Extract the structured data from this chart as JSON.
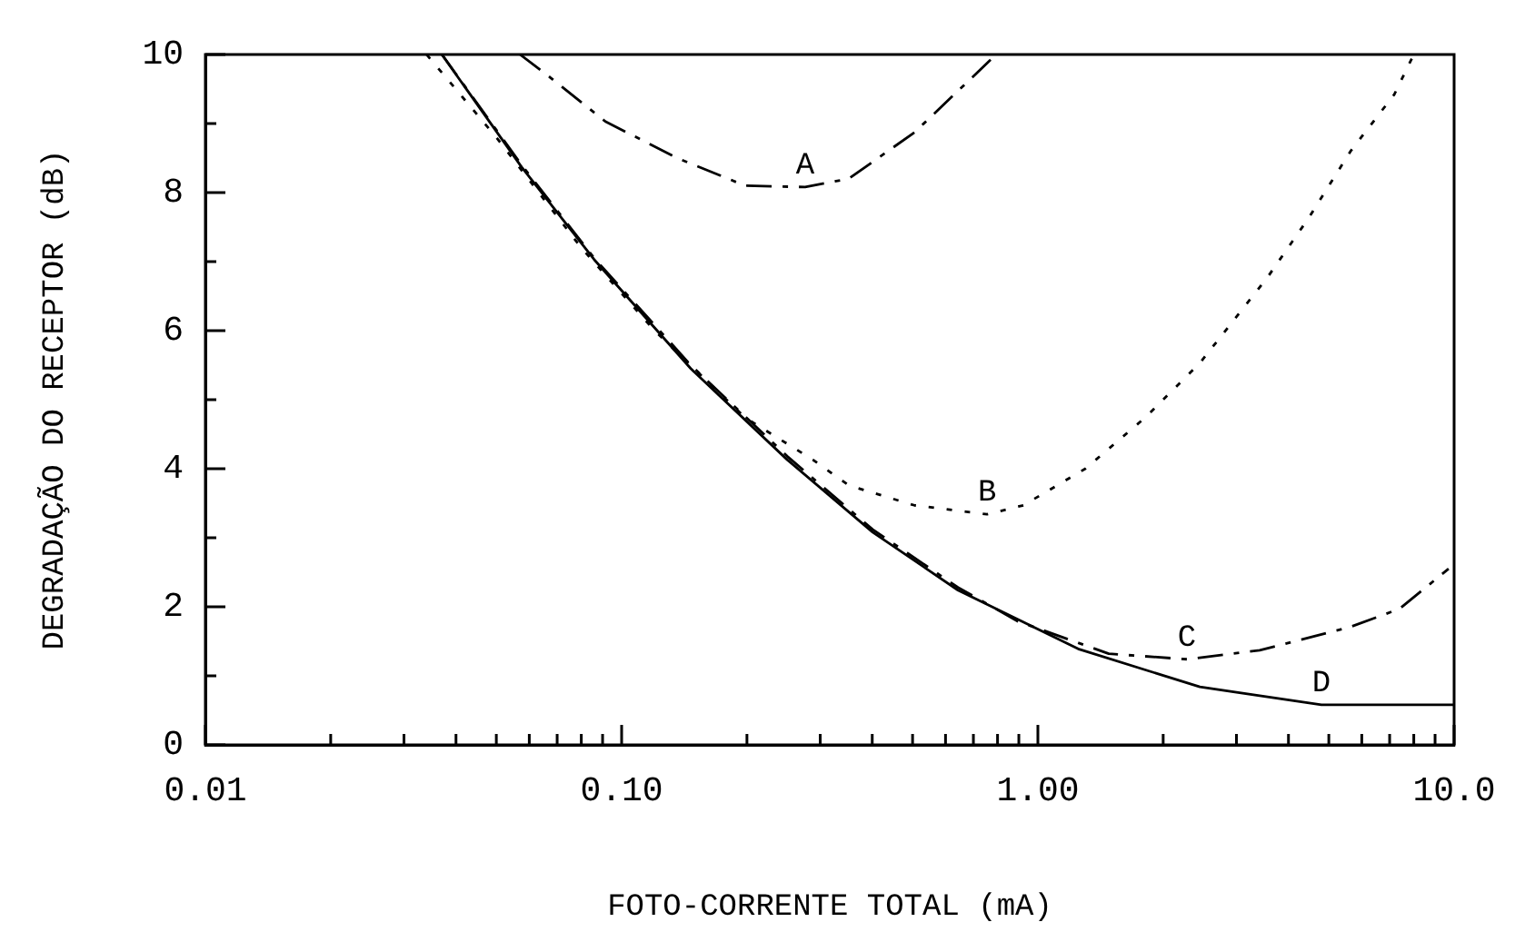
{
  "chart_data": {
    "type": "line",
    "xlabel": "FOTO-CORRENTE TOTAL (mA)",
    "ylabel": "DEGRADAÇÃO DO RECEPTOR (dB)",
    "log": "x",
    "xlim": [
      0.01,
      10
    ],
    "ylim": [
      0,
      10
    ],
    "grid": false,
    "legend": false,
    "marker": "none",
    "xticks": [
      0.01,
      {
        "value": 0.02,
        "label": null
      },
      {
        "value": 0.03,
        "label": null
      },
      {
        "value": 0.04,
        "label": null
      },
      {
        "value": 0.05,
        "label": null
      },
      {
        "value": 0.06,
        "label": null
      },
      {
        "value": 0.07,
        "label": null
      },
      {
        "value": 0.08,
        "label": null
      },
      {
        "value": 0.09,
        "label": null
      },
      {
        "value": 0.1,
        "label": "0.10"
      },
      {
        "value": 0.2,
        "label": null
      },
      {
        "value": 0.3,
        "label": null
      },
      {
        "value": 0.4,
        "label": null
      },
      {
        "value": 0.5,
        "label": null
      },
      {
        "value": 0.6,
        "label": null
      },
      {
        "value": 0.7,
        "label": null
      },
      {
        "value": 0.8,
        "label": null
      },
      {
        "value": 0.9,
        "label": null
      },
      {
        "value": 1,
        "label": "1.00"
      },
      {
        "value": 2,
        "label": null
      },
      {
        "value": 3,
        "label": null
      },
      {
        "value": 4,
        "label": null
      },
      {
        "value": 5,
        "label": null
      },
      {
        "value": 6,
        "label": null
      },
      {
        "value": 7,
        "label": null
      },
      {
        "value": 8,
        "label": null
      },
      {
        "value": 9,
        "label": null
      },
      {
        "value": 10,
        "label": "10.0"
      }
    ],
    "yticks": [
      0,
      {
        "value": 1,
        "label": null
      },
      2,
      {
        "value": 3,
        "label": null
      },
      4,
      {
        "value": 5,
        "label": null
      },
      6,
      {
        "value": 7,
        "label": null
      },
      8,
      {
        "value": 9,
        "label": null
      },
      10
    ],
    "series": [
      {
        "name": "A",
        "color": "#000000",
        "line_style": "dashed",
        "x": [
          0.057,
          0.0676,
          0.0914,
          0.136,
          0.198,
          0.276,
          0.351,
          0.505,
          0.794
        ],
        "values": [
          10,
          9.66,
          9.03,
          8.5,
          8.1,
          8.08,
          8.2,
          8.87,
          10
        ]
      },
      {
        "name": "B",
        "color": "#000000",
        "line_style": "dotted",
        "x": [
          0.034,
          0.05,
          0.08,
          0.12,
          0.198,
          0.288,
          0.351,
          0.413,
          0.505,
          0.755,
          0.923,
          1.3,
          1.81,
          2.45,
          3.55,
          4.47,
          5.64,
          7.18,
          8.0
        ],
        "values": [
          10,
          8.8,
          7.2,
          6.0,
          4.74,
          4.13,
          3.76,
          3.63,
          3.47,
          3.34,
          3.47,
          4.0,
          4.74,
          5.53,
          6.76,
          7.63,
          8.6,
          9.42,
          10
        ]
      },
      {
        "name": "C",
        "color": "#000000",
        "line_style": "dashed",
        "x": [
          0.037,
          0.0575,
          0.0859,
          0.1466,
          0.25,
          0.401,
          0.643,
          0.895,
          1.48,
          2.28,
          3.41,
          5.64,
          7.39,
          9.7
        ],
        "values": [
          10,
          8.4,
          7.05,
          5.5,
          4.18,
          3.12,
          2.28,
          1.79,
          1.32,
          1.24,
          1.37,
          1.71,
          1.97,
          2.55
        ]
      },
      {
        "name": "D",
        "color": "#000000",
        "line_style": "solid",
        "x": [
          0.037,
          0.0575,
          0.0859,
          0.1466,
          0.25,
          0.401,
          0.643,
          1.25,
          2.45,
          4.8,
          10
        ],
        "values": [
          10,
          8.37,
          7.03,
          5.45,
          4.13,
          3.08,
          2.24,
          1.39,
          0.84,
          0.58,
          0.58
        ]
      }
    ]
  }
}
